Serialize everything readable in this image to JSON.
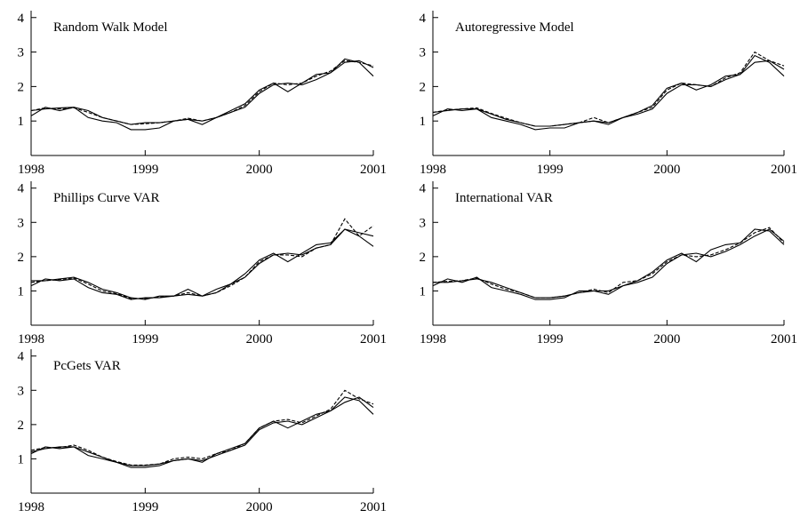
{
  "chart_data": [
    {
      "type": "line",
      "title": "Random Walk Model",
      "x": [
        1998,
        1998.125,
        1998.25,
        1998.375,
        1998.5,
        1998.625,
        1998.75,
        1998.875,
        1999,
        1999.125,
        1999.25,
        1999.375,
        1999.5,
        1999.625,
        1999.75,
        1999.875,
        2000,
        2000.125,
        2000.25,
        2000.375,
        2000.5,
        2000.625,
        2000.75,
        2000.875,
        2001
      ],
      "series": [
        {
          "color": "#000000",
          "style": "solid",
          "values": [
            1.3,
            1.35,
            1.38,
            1.4,
            1.3,
            1.1,
            1.0,
            0.9,
            0.95,
            0.95,
            1.0,
            1.05,
            1.0,
            1.1,
            1.25,
            1.4,
            1.8,
            2.05,
            2.1,
            2.05,
            2.2,
            2.4,
            2.7,
            2.75,
            2.55
          ]
        },
        {
          "color": "#000000",
          "style": "solid",
          "values": [
            1.15,
            1.4,
            1.3,
            1.4,
            1.1,
            1.0,
            0.95,
            0.75,
            0.75,
            0.8,
            1.0,
            1.05,
            0.9,
            1.1,
            1.3,
            1.5,
            1.9,
            2.1,
            1.85,
            2.1,
            2.35,
            2.4,
            2.8,
            2.7,
            2.3
          ]
        },
        {
          "color": "#000000",
          "style": "dashed",
          "values": [
            1.3,
            1.38,
            1.35,
            1.38,
            1.25,
            1.1,
            1.0,
            0.9,
            0.92,
            0.95,
            1.0,
            1.08,
            1.0,
            1.1,
            1.25,
            1.45,
            1.85,
            2.1,
            2.05,
            2.1,
            2.3,
            2.45,
            2.75,
            2.7,
            2.6
          ]
        }
      ],
      "xlim": [
        1998,
        2001
      ],
      "xticks": [
        1998,
        1999,
        2000,
        2001
      ],
      "ylim": [
        0,
        4.2
      ],
      "yticks": [
        1,
        2,
        3,
        4
      ]
    },
    {
      "type": "line",
      "title": "Autoregressive Model",
      "x": [
        1998,
        1998.125,
        1998.25,
        1998.375,
        1998.5,
        1998.625,
        1998.75,
        1998.875,
        1999,
        1999.125,
        1999.25,
        1999.375,
        1999.5,
        1999.625,
        1999.75,
        1999.875,
        2000,
        2000.125,
        2000.25,
        2000.375,
        2000.5,
        2000.625,
        2000.75,
        2000.875,
        2001
      ],
      "series": [
        {
          "color": "#000000",
          "style": "solid",
          "values": [
            1.25,
            1.3,
            1.35,
            1.35,
            1.2,
            1.05,
            0.95,
            0.85,
            0.85,
            0.9,
            0.95,
            1.0,
            0.95,
            1.1,
            1.2,
            1.35,
            1.8,
            2.05,
            2.05,
            2.0,
            2.2,
            2.35,
            2.7,
            2.75,
            2.5
          ]
        },
        {
          "color": "#000000",
          "style": "solid",
          "values": [
            1.15,
            1.35,
            1.3,
            1.35,
            1.1,
            1.0,
            0.9,
            0.75,
            0.8,
            0.8,
            0.95,
            1.0,
            0.9,
            1.1,
            1.25,
            1.45,
            1.95,
            2.1,
            1.9,
            2.05,
            2.3,
            2.35,
            2.9,
            2.7,
            2.3
          ]
        },
        {
          "color": "#000000",
          "style": "dashed",
          "values": [
            1.25,
            1.32,
            1.35,
            1.38,
            1.22,
            1.08,
            0.95,
            0.85,
            0.85,
            0.9,
            0.95,
            1.1,
            0.95,
            1.1,
            1.25,
            1.4,
            1.9,
            2.1,
            2.05,
            2.0,
            2.25,
            2.4,
            3.0,
            2.75,
            2.6
          ]
        }
      ],
      "xlim": [
        1998,
        2001
      ],
      "xticks": [
        1998,
        1999,
        2000,
        2001
      ],
      "ylim": [
        0,
        4.2
      ],
      "yticks": [
        1,
        2,
        3,
        4
      ]
    },
    {
      "type": "line",
      "title": "Phillips Curve VAR",
      "x": [
        1998,
        1998.125,
        1998.25,
        1998.375,
        1998.5,
        1998.625,
        1998.75,
        1998.875,
        1999,
        1999.125,
        1999.25,
        1999.375,
        1999.5,
        1999.625,
        1999.75,
        1999.875,
        2000,
        2000.125,
        2000.25,
        2000.375,
        2000.5,
        2000.625,
        2000.75,
        2000.875,
        2001
      ],
      "series": [
        {
          "color": "#000000",
          "style": "solid",
          "values": [
            1.3,
            1.3,
            1.35,
            1.4,
            1.25,
            1.05,
            0.95,
            0.8,
            0.75,
            0.85,
            0.85,
            0.9,
            0.85,
            0.95,
            1.2,
            1.4,
            1.8,
            2.05,
            2.1,
            2.05,
            2.25,
            2.35,
            2.8,
            2.7,
            2.6
          ]
        },
        {
          "color": "#000000",
          "style": "solid",
          "values": [
            1.15,
            1.35,
            1.3,
            1.35,
            1.1,
            0.95,
            0.9,
            0.75,
            0.8,
            0.8,
            0.85,
            1.05,
            0.85,
            1.05,
            1.2,
            1.5,
            1.9,
            2.1,
            1.85,
            2.1,
            2.35,
            2.4,
            2.8,
            2.6,
            2.3
          ]
        },
        {
          "color": "#000000",
          "style": "dashed",
          "values": [
            1.25,
            1.3,
            1.33,
            1.38,
            1.2,
            1.0,
            0.92,
            0.78,
            0.78,
            0.82,
            0.85,
            0.95,
            0.85,
            0.95,
            1.15,
            1.4,
            1.85,
            2.05,
            2.05,
            2.0,
            2.25,
            2.35,
            3.1,
            2.6,
            2.9
          ]
        }
      ],
      "xlim": [
        1998,
        2001
      ],
      "xticks": [
        1998,
        1999,
        2000,
        2001
      ],
      "ylim": [
        0,
        4.2
      ],
      "yticks": [
        1,
        2,
        3,
        4
      ]
    },
    {
      "type": "line",
      "title": "International VAR",
      "x": [
        1998,
        1998.125,
        1998.25,
        1998.375,
        1998.5,
        1998.625,
        1998.75,
        1998.875,
        1999,
        1999.125,
        1999.25,
        1999.375,
        1999.5,
        1999.625,
        1999.75,
        1999.875,
        2000,
        2000.125,
        2000.25,
        2000.375,
        2000.5,
        2000.625,
        2000.75,
        2000.875,
        2001
      ],
      "series": [
        {
          "color": "#000000",
          "style": "solid",
          "values": [
            1.25,
            1.25,
            1.3,
            1.35,
            1.25,
            1.1,
            0.95,
            0.8,
            0.8,
            0.85,
            0.95,
            1.0,
            1.0,
            1.15,
            1.25,
            1.4,
            1.8,
            2.05,
            2.1,
            2.0,
            2.15,
            2.35,
            2.6,
            2.8,
            2.45
          ]
        },
        {
          "color": "#000000",
          "style": "solid",
          "values": [
            1.15,
            1.35,
            1.25,
            1.4,
            1.1,
            1.0,
            0.9,
            0.75,
            0.75,
            0.8,
            1.0,
            1.0,
            0.9,
            1.15,
            1.3,
            1.55,
            1.9,
            2.1,
            1.85,
            2.2,
            2.35,
            2.4,
            2.8,
            2.75,
            2.35
          ]
        },
        {
          "color": "#000000",
          "style": "dashed",
          "values": [
            1.25,
            1.28,
            1.3,
            1.38,
            1.2,
            1.05,
            0.95,
            0.8,
            0.8,
            0.85,
            0.95,
            1.05,
            0.95,
            1.25,
            1.3,
            1.5,
            1.85,
            2.05,
            2.0,
            2.05,
            2.2,
            2.4,
            2.7,
            2.85,
            2.4
          ]
        }
      ],
      "xlim": [
        1998,
        2001
      ],
      "xticks": [
        1998,
        1999,
        2000,
        2001
      ],
      "ylim": [
        0,
        4.2
      ],
      "yticks": [
        1,
        2,
        3,
        4
      ]
    },
    {
      "type": "line",
      "title": "PcGets VAR",
      "x": [
        1998,
        1998.125,
        1998.25,
        1998.375,
        1998.5,
        1998.625,
        1998.75,
        1998.875,
        1999,
        1999.125,
        1999.25,
        1999.375,
        1999.5,
        1999.625,
        1999.75,
        1999.875,
        2000,
        2000.125,
        2000.25,
        2000.375,
        2000.5,
        2000.625,
        2000.75,
        2000.875,
        2001
      ],
      "series": [
        {
          "color": "#000000",
          "style": "solid",
          "values": [
            1.2,
            1.3,
            1.35,
            1.35,
            1.2,
            1.05,
            0.9,
            0.8,
            0.8,
            0.85,
            0.95,
            1.0,
            0.95,
            1.1,
            1.25,
            1.4,
            1.85,
            2.05,
            2.1,
            2.0,
            2.2,
            2.4,
            2.65,
            2.8,
            2.5
          ]
        },
        {
          "color": "#000000",
          "style": "solid",
          "values": [
            1.15,
            1.35,
            1.3,
            1.35,
            1.1,
            1.0,
            0.9,
            0.75,
            0.75,
            0.8,
            0.95,
            1.0,
            0.9,
            1.15,
            1.3,
            1.45,
            1.9,
            2.1,
            1.9,
            2.1,
            2.3,
            2.4,
            2.8,
            2.7,
            2.3
          ]
        },
        {
          "color": "#000000",
          "style": "dashed",
          "values": [
            1.25,
            1.33,
            1.33,
            1.4,
            1.25,
            1.05,
            0.92,
            0.82,
            0.82,
            0.85,
            1.0,
            1.05,
            1.0,
            1.15,
            1.25,
            1.45,
            1.9,
            2.1,
            2.15,
            2.05,
            2.25,
            2.45,
            3.0,
            2.75,
            2.6
          ]
        }
      ],
      "xlim": [
        1998,
        2001
      ],
      "xticks": [
        1998,
        1999,
        2000,
        2001
      ],
      "ylim": [
        0,
        4.2
      ],
      "yticks": [
        1,
        2,
        3,
        4
      ]
    }
  ]
}
